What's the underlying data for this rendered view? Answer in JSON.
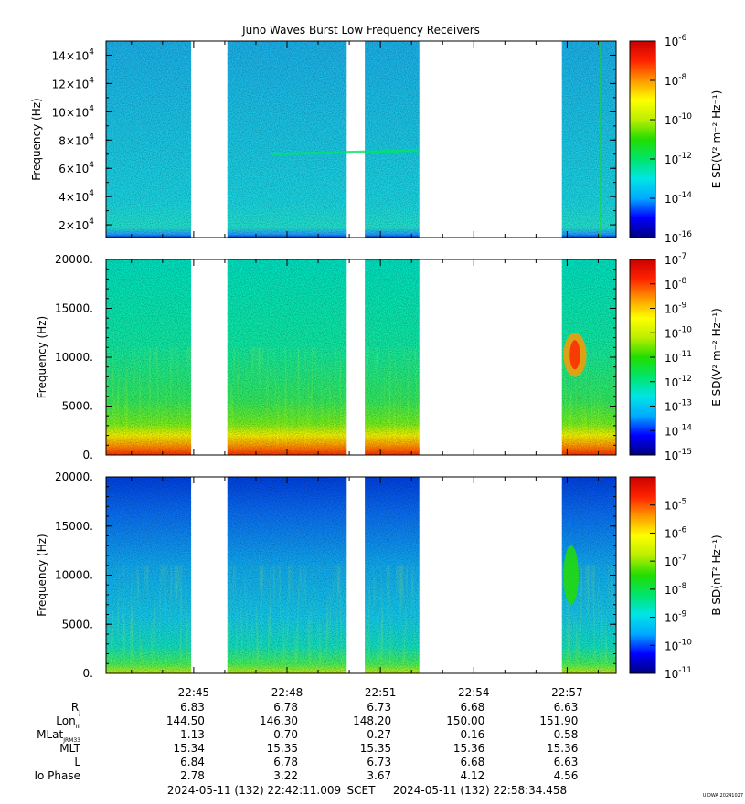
{
  "title": "Juno Waves Burst Low Frequency Receivers",
  "footer": {
    "start": "2024-05-11 (132) 22:42:11.009",
    "frame": "SCET",
    "end": "2024-05-11 (132) 22:58:34.458",
    "credit": "UIOWA 20241027"
  },
  "x_ticks": [
    "22:45",
    "22:48",
    "22:51",
    "22:54",
    "22:57"
  ],
  "ephemeris": {
    "labels": [
      {
        "main": "R",
        "sub": "J"
      },
      {
        "main": "Lon",
        "sub": "III"
      },
      {
        "main": "MLat",
        "sub": "JRM33"
      },
      {
        "main": "MLT",
        "sub": ""
      },
      {
        "main": "L",
        "sub": ""
      },
      {
        "main": "Io Phase",
        "sub": ""
      }
    ],
    "rows": [
      [
        "6.83",
        "6.78",
        "6.73",
        "6.68",
        "6.63"
      ],
      [
        "144.50",
        "146.30",
        "148.20",
        "150.00",
        "151.90"
      ],
      [
        "-1.13",
        "-0.70",
        "-0.27",
        "0.16",
        "0.58"
      ],
      [
        "15.34",
        "15.35",
        "15.35",
        "15.36",
        "15.36"
      ],
      [
        "6.84",
        "6.78",
        "6.73",
        "6.68",
        "6.63"
      ],
      [
        "2.78",
        "3.22",
        "3.67",
        "4.12",
        "4.56"
      ]
    ]
  },
  "chart_data": [
    {
      "type": "heatmap",
      "title": "Juno Waves Burst Low Frequency Receivers",
      "ylabel": "Frequency (Hz)",
      "ylim": [
        11000,
        150000
      ],
      "yticks": [
        {
          "mant": "2×10",
          "exp": "4",
          "value": 20000
        },
        {
          "mant": "4×10",
          "exp": "4",
          "value": 40000
        },
        {
          "mant": "6×10",
          "exp": "4",
          "value": 60000
        },
        {
          "mant": "8×10",
          "exp": "4",
          "value": 80000
        },
        {
          "mant": "10×10",
          "exp": "4",
          "value": 100000
        },
        {
          "mant": "12×10",
          "exp": "4",
          "value": 120000
        },
        {
          "mant": "14×10",
          "exp": "4",
          "value": 140000
        }
      ],
      "colorbar": {
        "label": "E SD(V² m⁻² Hz⁻¹)",
        "scale": "log",
        "range_exp": [
          -16,
          -6
        ],
        "ticks": [
          "-6",
          "-8",
          "-10",
          "-12",
          "-14",
          "-16"
        ]
      },
      "x_time_range": [
        "22:42:11.009",
        "22:58:34.458"
      ],
      "data_gaps": [
        [
          "22:44:55",
          "22:46:05"
        ],
        [
          "22:49:55",
          "22:50:30"
        ],
        [
          "22:52:15",
          "22:56:50"
        ]
      ],
      "features": [
        {
          "desc": "narrowband emission",
          "time": [
            "22:47:30",
            "22:52:15"
          ],
          "freq_hz": 70000
        },
        {
          "desc": "vertical line",
          "time": "22:58:05",
          "freq_hz": [
            11000,
            150000
          ]
        }
      ]
    },
    {
      "type": "heatmap",
      "ylabel": "Frequency (Hz)",
      "ylim": [
        0,
        20000
      ],
      "yticks": [
        {
          "label": "0.",
          "value": 0
        },
        {
          "label": "5000.",
          "value": 5000
        },
        {
          "label": "10000.",
          "value": 10000
        },
        {
          "label": "15000.",
          "value": 15000
        },
        {
          "label": "20000.",
          "value": 20000
        }
      ],
      "colorbar": {
        "label": "E SD(V² m⁻² Hz⁻¹)",
        "scale": "log",
        "range_exp": [
          -15,
          -7
        ],
        "ticks": [
          "-7",
          "-8",
          "-9",
          "-10",
          "-11",
          "-12",
          "-13",
          "-14",
          "-15"
        ]
      },
      "x_time_range": [
        "22:42:11.009",
        "22:58:34.458"
      ],
      "data_gaps": [
        [
          "22:44:55",
          "22:46:05"
        ],
        [
          "22:49:55",
          "22:50:30"
        ],
        [
          "22:52:15",
          "22:56:50"
        ]
      ],
      "features": [
        {
          "desc": "intense emission",
          "time": [
            "22:57:00",
            "22:57:30"
          ],
          "freq_hz": [
            8000,
            12500
          ]
        }
      ]
    },
    {
      "type": "heatmap",
      "ylabel": "Frequency (Hz)",
      "ylim": [
        0,
        20000
      ],
      "yticks": [
        {
          "label": "0.",
          "value": 0
        },
        {
          "label": "5000.",
          "value": 5000
        },
        {
          "label": "10000.",
          "value": 10000
        },
        {
          "label": "15000.",
          "value": 15000
        },
        {
          "label": "20000.",
          "value": 20000
        }
      ],
      "colorbar": {
        "label": "B SD(nT² Hz⁻¹)",
        "scale": "log",
        "range_exp": [
          -11,
          -4
        ],
        "ticks": [
          "-5",
          "-6",
          "-7",
          "-8",
          "-9",
          "-10",
          "-11"
        ]
      },
      "x_time_range": [
        "22:42:11.009",
        "22:58:34.458"
      ],
      "data_gaps": [
        [
          "22:44:55",
          "22:46:05"
        ],
        [
          "22:49:55",
          "22:50:30"
        ],
        [
          "22:52:15",
          "22:56:50"
        ]
      ],
      "features": [
        {
          "desc": "whistler-like emission",
          "time": [
            "22:57:00",
            "22:57:15"
          ],
          "freq_hz": [
            7000,
            13000
          ]
        }
      ]
    }
  ],
  "colors": {
    "colormap": [
      "#00007f",
      "#0000ff",
      "#00aaff",
      "#00e5e5",
      "#00e56a",
      "#22dd00",
      "#bbee00",
      "#ffff00",
      "#ff9900",
      "#ff2200",
      "#cc0000"
    ]
  }
}
